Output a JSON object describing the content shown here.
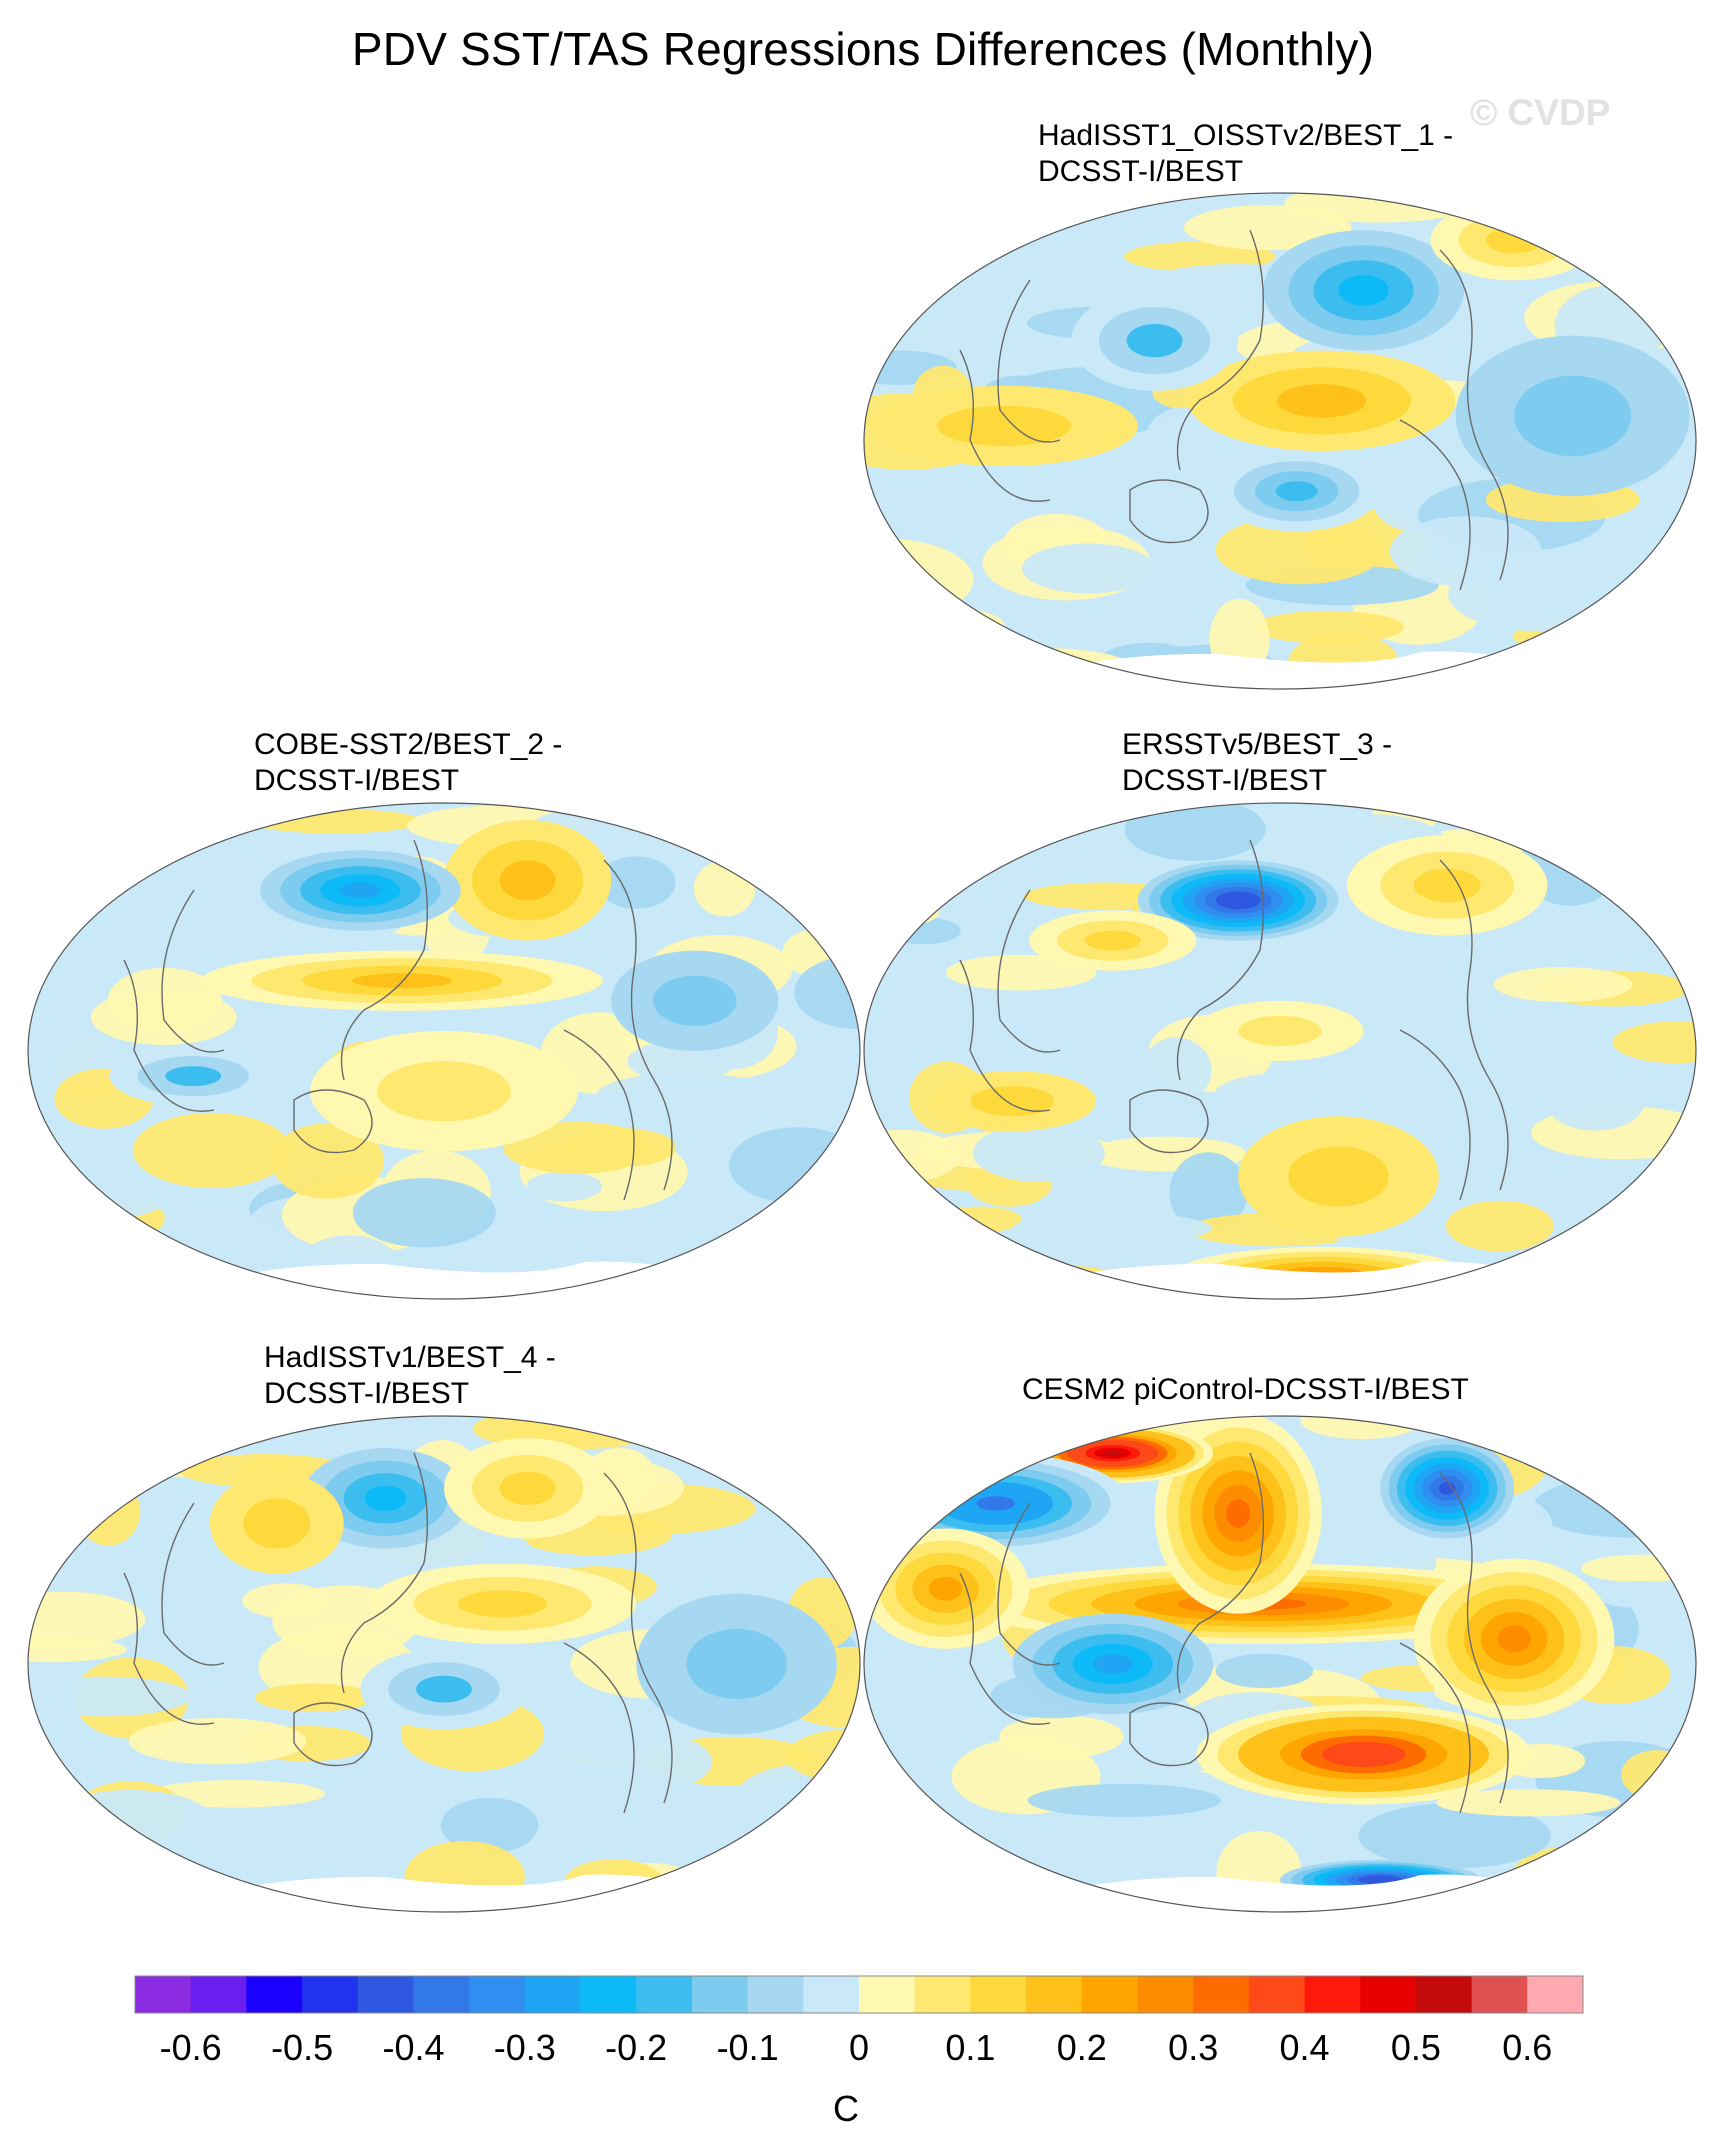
{
  "title": "PDV SST/TAS Regressions Differences (Monthly)",
  "watermark": "© CVDP",
  "panels": [
    {
      "title": "HadISST1_OISSTv2/BEST_1 -\nDCSST-I/BEST"
    },
    {
      "title": "COBE-SST2/BEST_2 -\nDCSST-I/BEST"
    },
    {
      "title": "ERSSTv5/BEST_3 -\nDCSST-I/BEST"
    },
    {
      "title": "HadISSTv1/BEST_4 -\nDCSST-I/BEST"
    },
    {
      "title": "CESM2 piControl-DCSST-I/BEST"
    }
  ],
  "colorbar": {
    "unit": "C",
    "labels": [
      "-0.6",
      "-0.5",
      "-0.4",
      "-0.3",
      "-0.2",
      "-0.1",
      "0",
      "0.1",
      "0.2",
      "0.3",
      "0.4",
      "0.5",
      "0.6"
    ],
    "colors": [
      "#8a2be2",
      "#6a1ff0",
      "#1a00ff",
      "#2233ee",
      "#2f58e0",
      "#3278e8",
      "#2f8ef0",
      "#1ea6f5",
      "#0cbaf8",
      "#3bbdf0",
      "#7dcbee",
      "#a6d8f2",
      "#c9e8f8",
      "#fff8b0",
      "#ffe870",
      "#fed93b",
      "#fec11a",
      "#fea500",
      "#fe8c00",
      "#fe6c00",
      "#fe4a18",
      "#fe1a0a",
      "#e60000",
      "#c40a0a",
      "#e05050",
      "#ffaab0"
    ]
  },
  "chart_data": {
    "type": "heatmap",
    "title": "PDV SST/TAS Regressions Differences (Monthly)",
    "unit": "C",
    "contour_levels": [
      -0.65,
      -0.6,
      -0.55,
      -0.5,
      -0.45,
      -0.4,
      -0.35,
      -0.3,
      -0.25,
      -0.2,
      -0.15,
      -0.1,
      -0.05,
      0,
      0.05,
      0.1,
      0.15,
      0.2,
      0.25,
      0.3,
      0.35,
      0.4,
      0.45,
      0.5,
      0.55,
      0.6,
      0.65
    ],
    "panels": [
      {
        "name": "HadISST1_OISSTv2/BEST_1 - DCSST-I/BEST",
        "range": [
          -0.3,
          0.2
        ]
      },
      {
        "name": "COBE-SST2/BEST_2 - DCSST-I/BEST",
        "range": [
          -0.3,
          0.2
        ]
      },
      {
        "name": "ERSSTv5/BEST_3 - DCSST-I/BEST",
        "range": [
          -0.5,
          0.3
        ]
      },
      {
        "name": "HadISSTv1/BEST_4 - DCSST-I/BEST",
        "range": [
          -0.3,
          0.2
        ]
      },
      {
        "name": "CESM2 piControl-DCSST-I/BEST",
        "range": [
          -0.6,
          0.65
        ]
      }
    ]
  }
}
